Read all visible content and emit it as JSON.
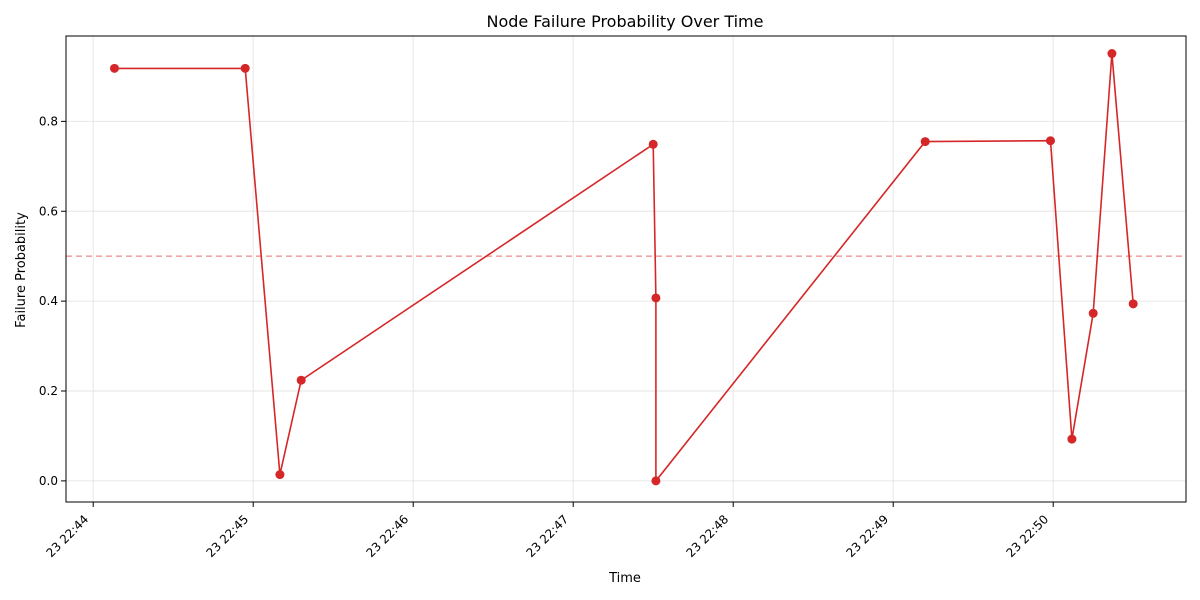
{
  "chart_data": {
    "type": "line",
    "title": "Node Failure Probability Over Time",
    "xlabel": "Time",
    "ylabel": "Failure Probability",
    "x_ticks": [
      "23 22:44",
      "23 22:45",
      "23 22:46",
      "23 22:47",
      "23 22:48",
      "23 22:49",
      "23 22:50"
    ],
    "x_tick_minutes": [
      44,
      45,
      46,
      47,
      48,
      49,
      50
    ],
    "y_ticks": [
      "0.0",
      "0.2",
      "0.4",
      "0.6",
      "0.8"
    ],
    "y_tick_values": [
      0,
      0.2,
      0.4,
      0.6,
      0.8
    ],
    "xlim_minutes": [
      43.83,
      50.83
    ],
    "ylim": [
      -0.047,
      0.99
    ],
    "grid": true,
    "threshold": 0.5,
    "colors": {
      "line": "#d62728",
      "threshold": "#f2a3a3",
      "grid": "#e6e6e6"
    },
    "series": [
      {
        "points": [
          {
            "t": 44.133,
            "y": 0.918
          },
          {
            "t": 44.95,
            "y": 0.918
          },
          {
            "t": 45.167,
            "y": 0.014
          },
          {
            "t": 45.3,
            "y": 0.224
          },
          {
            "t": 47.5,
            "y": 0.749
          },
          {
            "t": 47.517,
            "y": 0.407
          },
          {
            "t": 47.517,
            "y": 0.0
          },
          {
            "t": 49.2,
            "y": 0.755
          },
          {
            "t": 49.983,
            "y": 0.757
          },
          {
            "t": 50.117,
            "y": 0.093
          },
          {
            "t": 50.25,
            "y": 0.373
          },
          {
            "t": 50.367,
            "y": 0.951
          },
          {
            "t": 50.5,
            "y": 0.394
          }
        ]
      }
    ]
  }
}
